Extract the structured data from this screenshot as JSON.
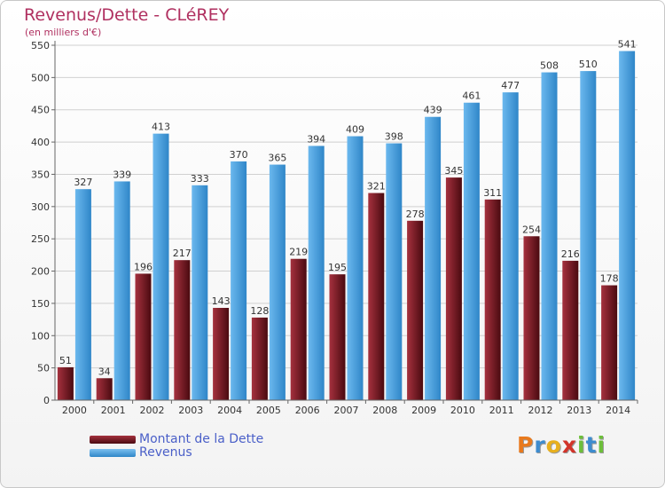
{
  "title": "Revenus/Dette - CLéREY",
  "subtitle": "(en milliers d'€)",
  "logo": {
    "text": "Proxiti",
    "letters": [
      "P",
      "r",
      "o",
      "x",
      "i",
      "t",
      "i"
    ],
    "colors": [
      "#e87a1e",
      "#3d8ccf",
      "#e8b01e",
      "#d2342a",
      "#6cbf3a",
      "#3d8ccf",
      "#6cbf3a"
    ]
  },
  "chart_data": {
    "type": "bar",
    "categories": [
      "2000",
      "2001",
      "2002",
      "2003",
      "2004",
      "2005",
      "2006",
      "2007",
      "2008",
      "2009",
      "2010",
      "2011",
      "2012",
      "2013",
      "2014"
    ],
    "series": [
      {
        "name": "Montant de la Dette",
        "color": "#7a1520",
        "values": [
          51,
          34,
          196,
          217,
          143,
          128,
          219,
          195,
          321,
          278,
          345,
          311,
          254,
          216,
          178
        ]
      },
      {
        "name": "Revenus",
        "color": "#4da3e3",
        "values": [
          327,
          339,
          413,
          333,
          370,
          365,
          394,
          409,
          398,
          439,
          461,
          477,
          508,
          510,
          541
        ]
      }
    ],
    "ylim": [
      0,
      550
    ],
    "yticks": [
      0,
      50,
      100,
      150,
      200,
      250,
      300,
      350,
      400,
      450,
      500,
      550
    ],
    "grid": true,
    "legend_position": "bottom-left"
  }
}
